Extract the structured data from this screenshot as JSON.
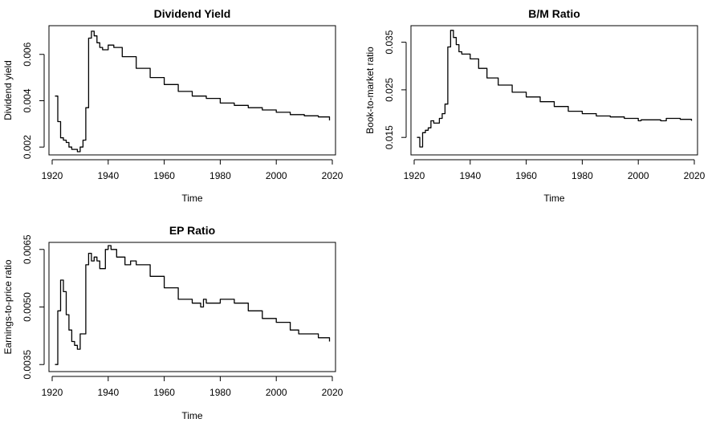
{
  "chart_data": [
    {
      "type": "line",
      "step": true,
      "title": "Dividend Yield",
      "xlabel": "Time",
      "ylabel": "Dividend yield",
      "xlim": [
        1920,
        2020
      ],
      "ylim": [
        0.0018,
        0.0071
      ],
      "xticks": [
        1920,
        1940,
        1960,
        1980,
        2000,
        2020
      ],
      "xtick_labels": [
        "1920",
        "1940",
        "1960",
        "1980",
        "2000",
        "2020"
      ],
      "yticks": [
        0.002,
        0.004,
        0.006
      ],
      "ytick_labels": [
        "0.002",
        "0.004",
        "0.006"
      ],
      "grid": false,
      "x": [
        1921,
        1922,
        1923,
        1924,
        1925,
        1926,
        1927,
        1928,
        1929,
        1930,
        1931,
        1932,
        1933,
        1934,
        1935,
        1936,
        1937,
        1938,
        1940,
        1942,
        1945,
        1950,
        1955,
        1960,
        1965,
        1970,
        1975,
        1980,
        1985,
        1990,
        1995,
        2000,
        2005,
        2010,
        2015,
        2019
      ],
      "values": [
        0.0042,
        0.0031,
        0.0024,
        0.0023,
        0.0022,
        0.002,
        0.0019,
        0.0019,
        0.0018,
        0.002,
        0.0023,
        0.0037,
        0.0067,
        0.007,
        0.0068,
        0.0065,
        0.0063,
        0.0062,
        0.0064,
        0.0063,
        0.0059,
        0.0054,
        0.005,
        0.0047,
        0.0044,
        0.0042,
        0.0041,
        0.0039,
        0.0038,
        0.0037,
        0.0036,
        0.0035,
        0.0034,
        0.00335,
        0.0033,
        0.00315
      ]
    },
    {
      "type": "line",
      "step": true,
      "title": "B/M Ratio",
      "xlabel": "Time",
      "ylabel": "Book-to-market ratio",
      "xlim": [
        1920,
        2020
      ],
      "ylim": [
        0.012,
        0.0378
      ],
      "xticks": [
        1920,
        1940,
        1960,
        1980,
        2000,
        2020
      ],
      "xtick_labels": [
        "1920",
        "1940",
        "1960",
        "1980",
        "2000",
        "2020"
      ],
      "yticks": [
        0.015,
        0.025,
        0.035
      ],
      "ytick_labels": [
        "0.015",
        "0.025",
        "0.035"
      ],
      "grid": false,
      "x": [
        1921,
        1922,
        1923,
        1924,
        1925,
        1926,
        1927,
        1928,
        1929,
        1930,
        1931,
        1932,
        1933,
        1934,
        1935,
        1936,
        1937,
        1940,
        1943,
        1946,
        1950,
        1955,
        1960,
        1965,
        1970,
        1975,
        1980,
        1985,
        1988,
        1990,
        1995,
        2000,
        2001,
        2005,
        2008,
        2010,
        2015,
        2019
      ],
      "values": [
        0.015,
        0.013,
        0.016,
        0.0165,
        0.017,
        0.0185,
        0.018,
        0.018,
        0.019,
        0.02,
        0.022,
        0.034,
        0.0375,
        0.036,
        0.0345,
        0.033,
        0.0325,
        0.0315,
        0.0295,
        0.0275,
        0.026,
        0.0245,
        0.0235,
        0.0225,
        0.0215,
        0.0205,
        0.02,
        0.0195,
        0.0195,
        0.0193,
        0.019,
        0.0185,
        0.0187,
        0.0187,
        0.0185,
        0.019,
        0.0188,
        0.0185
      ]
    },
    {
      "type": "line",
      "step": true,
      "title": "EP Ratio",
      "xlabel": "Time",
      "ylabel": "Earnings-to-price ratio",
      "xlim": [
        1920,
        2020
      ],
      "ylim": [
        0.0034,
        0.0066
      ],
      "xticks": [
        1920,
        1940,
        1960,
        1980,
        2000,
        2020
      ],
      "xtick_labels": [
        "1920",
        "1940",
        "1960",
        "1980",
        "2000",
        "2020"
      ],
      "yticks": [
        0.0035,
        0.005,
        0.0065
      ],
      "ytick_labels": [
        "0.0035",
        "0.0050",
        "0.0065"
      ],
      "grid": false,
      "x": [
        1921,
        1922,
        1923,
        1924,
        1925,
        1926,
        1927,
        1928,
        1929,
        1930,
        1931,
        1932,
        1933,
        1934,
        1935,
        1936,
        1937,
        1938,
        1939,
        1940,
        1941,
        1943,
        1946,
        1948,
        1950,
        1955,
        1960,
        1965,
        1970,
        1973,
        1974,
        1975,
        1980,
        1982,
        1985,
        1990,
        1995,
        2000,
        2005,
        2008,
        2010,
        2015,
        2019
      ],
      "values": [
        0.0035,
        0.0049,
        0.0057,
        0.0054,
        0.0048,
        0.0044,
        0.0041,
        0.004,
        0.0039,
        0.0043,
        0.0043,
        0.0061,
        0.0064,
        0.0062,
        0.0063,
        0.0062,
        0.006,
        0.006,
        0.0065,
        0.0066,
        0.0065,
        0.0063,
        0.0061,
        0.0062,
        0.0061,
        0.0058,
        0.0055,
        0.0052,
        0.0051,
        0.005,
        0.0052,
        0.0051,
        0.0052,
        0.0052,
        0.0051,
        0.0049,
        0.0047,
        0.0046,
        0.0044,
        0.0043,
        0.0043,
        0.0042,
        0.0041
      ]
    }
  ]
}
